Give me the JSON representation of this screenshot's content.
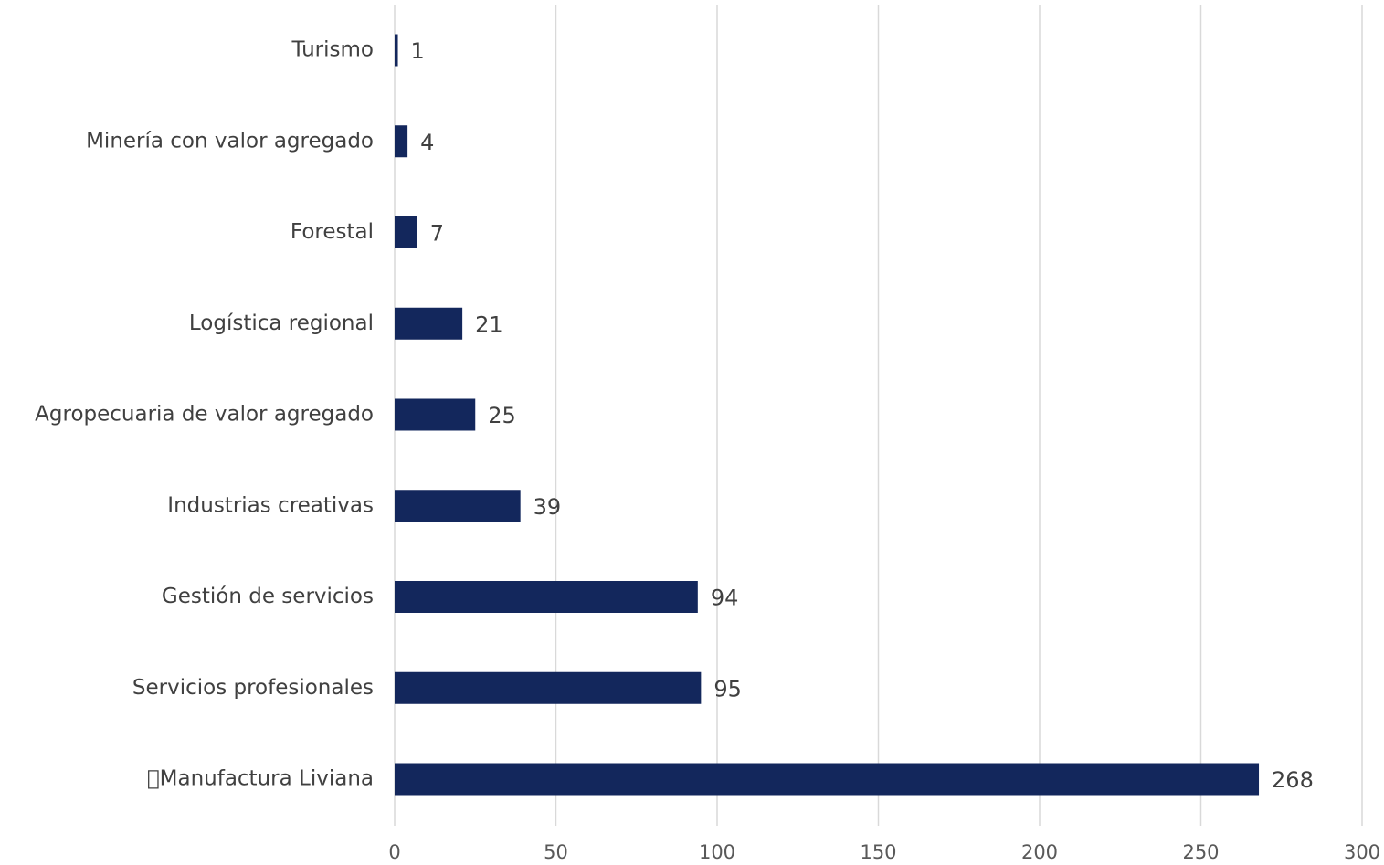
{
  "chart_data": {
    "type": "bar",
    "orientation": "horizontal",
    "title": "",
    "xlabel": "",
    "ylabel": "",
    "categories": [
      "Turismo",
      "Minería con valor agregado",
      "Forestal",
      "Logística regional",
      "Agropecuaria de valor agregado",
      "Industrias creativas",
      "Gestión de servicios",
      "Servicios profesionales",
      "Manufactura Liviana"
    ],
    "values": [
      1,
      4,
      7,
      21,
      25,
      39,
      94,
      95,
      268
    ],
    "data_labels": [
      "1",
      "4",
      "7",
      "21",
      "25",
      "39",
      "94",
      "95",
      "268"
    ],
    "xlim": [
      0,
      300
    ],
    "x_ticks": [
      0,
      50,
      100,
      150,
      200,
      250,
      300
    ],
    "x_tick_labels": [
      "0",
      "50",
      "100",
      "150",
      "200",
      "250",
      "300"
    ],
    "grid": "vertical",
    "legend": "none",
    "bar_color": "#13275c"
  }
}
